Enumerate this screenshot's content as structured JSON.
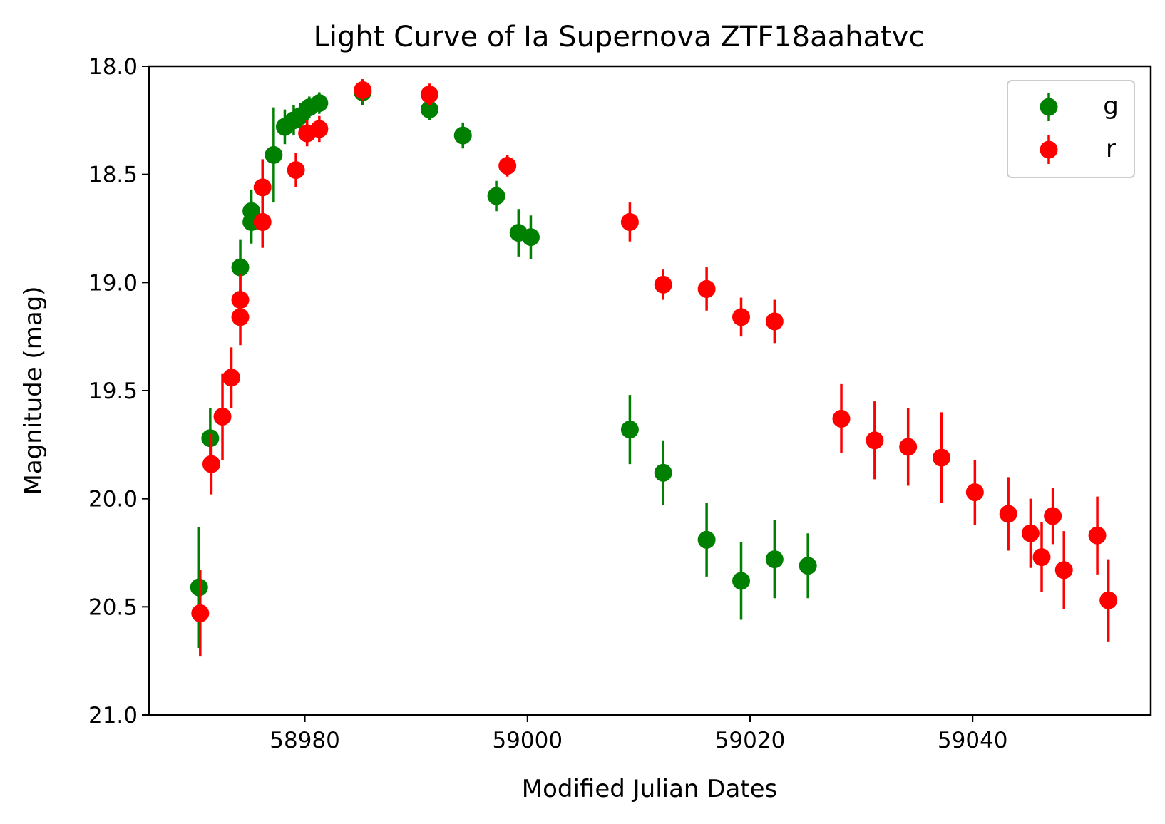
{
  "chart_data": {
    "type": "scatter",
    "title": "Light Curve of Ia Supernova ZTF18aahatvc",
    "xlabel": "Modified Julian Dates",
    "ylabel": "Magnitude (mag)",
    "xlim": [
      58966,
      59056
    ],
    "ylim": [
      21.0,
      18.0
    ],
    "y_inverted": true,
    "xticks": [
      58980,
      59000,
      59020,
      59040
    ],
    "xtick_labels": [
      "58980",
      "59000",
      "59020",
      "59040"
    ],
    "yticks": [
      18.0,
      18.5,
      19.0,
      19.5,
      20.0,
      20.5,
      21.0
    ],
    "ytick_labels": [
      "18.0",
      "18.5",
      "19.0",
      "19.5",
      "20.0",
      "20.5",
      "21.0"
    ],
    "grid": false,
    "legend_position": "top-right",
    "series": [
      {
        "name": "g",
        "color": "#008000",
        "points": [
          {
            "x": 58970.5,
            "y": 20.41,
            "err": 0.28
          },
          {
            "x": 58971.5,
            "y": 19.72,
            "err": 0.14
          },
          {
            "x": 58974.2,
            "y": 18.93,
            "err": 0.13
          },
          {
            "x": 58975.2,
            "y": 18.67,
            "err": 0.1
          },
          {
            "x": 58975.2,
            "y": 18.72,
            "err": 0.1
          },
          {
            "x": 58977.2,
            "y": 18.41,
            "err": 0.22
          },
          {
            "x": 58978.2,
            "y": 18.28,
            "err": 0.08
          },
          {
            "x": 58979.0,
            "y": 18.25,
            "err": 0.07
          },
          {
            "x": 58979.6,
            "y": 18.23,
            "err": 0.06
          },
          {
            "x": 58980.4,
            "y": 18.19,
            "err": 0.05
          },
          {
            "x": 58981.3,
            "y": 18.17,
            "err": 0.05
          },
          {
            "x": 58985.2,
            "y": 18.12,
            "err": 0.06
          },
          {
            "x": 58991.2,
            "y": 18.2,
            "err": 0.05
          },
          {
            "x": 58994.2,
            "y": 18.32,
            "err": 0.06
          },
          {
            "x": 58997.2,
            "y": 18.6,
            "err": 0.07
          },
          {
            "x": 58999.2,
            "y": 18.77,
            "err": 0.11
          },
          {
            "x": 59000.3,
            "y": 18.79,
            "err": 0.1
          },
          {
            "x": 59009.2,
            "y": 19.68,
            "err": 0.16
          },
          {
            "x": 59012.2,
            "y": 19.88,
            "err": 0.15
          },
          {
            "x": 59016.1,
            "y": 20.19,
            "err": 0.17
          },
          {
            "x": 59019.2,
            "y": 20.38,
            "err": 0.18
          },
          {
            "x": 59022.2,
            "y": 20.28,
            "err": 0.18
          },
          {
            "x": 59025.2,
            "y": 20.31,
            "err": 0.15
          }
        ]
      },
      {
        "name": "r",
        "color": "#ff0000",
        "points": [
          {
            "x": 58970.6,
            "y": 20.53,
            "err": 0.2
          },
          {
            "x": 58971.6,
            "y": 19.84,
            "err": 0.14
          },
          {
            "x": 58972.6,
            "y": 19.62,
            "err": 0.2
          },
          {
            "x": 58973.4,
            "y": 19.44,
            "err": 0.14
          },
          {
            "x": 58974.2,
            "y": 19.08,
            "err": 0.12
          },
          {
            "x": 58974.2,
            "y": 19.16,
            "err": 0.13
          },
          {
            "x": 58976.2,
            "y": 18.56,
            "err": 0.13
          },
          {
            "x": 58976.2,
            "y": 18.72,
            "err": 0.12
          },
          {
            "x": 58979.2,
            "y": 18.48,
            "err": 0.08
          },
          {
            "x": 58980.2,
            "y": 18.31,
            "err": 0.06
          },
          {
            "x": 58981.3,
            "y": 18.29,
            "err": 0.06
          },
          {
            "x": 58985.2,
            "y": 18.11,
            "err": 0.05
          },
          {
            "x": 58991.2,
            "y": 18.13,
            "err": 0.05
          },
          {
            "x": 58998.2,
            "y": 18.46,
            "err": 0.05
          },
          {
            "x": 59009.2,
            "y": 18.72,
            "err": 0.09
          },
          {
            "x": 59012.2,
            "y": 19.01,
            "err": 0.07
          },
          {
            "x": 59016.1,
            "y": 19.03,
            "err": 0.1
          },
          {
            "x": 59019.2,
            "y": 19.16,
            "err": 0.09
          },
          {
            "x": 59022.2,
            "y": 19.18,
            "err": 0.1
          },
          {
            "x": 59028.2,
            "y": 19.63,
            "err": 0.16
          },
          {
            "x": 59031.2,
            "y": 19.73,
            "err": 0.18
          },
          {
            "x": 59034.2,
            "y": 19.76,
            "err": 0.18
          },
          {
            "x": 59037.2,
            "y": 19.81,
            "err": 0.21
          },
          {
            "x": 59040.2,
            "y": 19.97,
            "err": 0.15
          },
          {
            "x": 59043.2,
            "y": 20.07,
            "err": 0.17
          },
          {
            "x": 59045.2,
            "y": 20.16,
            "err": 0.16
          },
          {
            "x": 59046.2,
            "y": 20.27,
            "err": 0.16
          },
          {
            "x": 59047.2,
            "y": 20.08,
            "err": 0.13
          },
          {
            "x": 59048.2,
            "y": 20.33,
            "err": 0.18
          },
          {
            "x": 59051.2,
            "y": 20.17,
            "err": 0.18
          },
          {
            "x": 59052.2,
            "y": 20.47,
            "err": 0.19
          }
        ]
      }
    ]
  }
}
